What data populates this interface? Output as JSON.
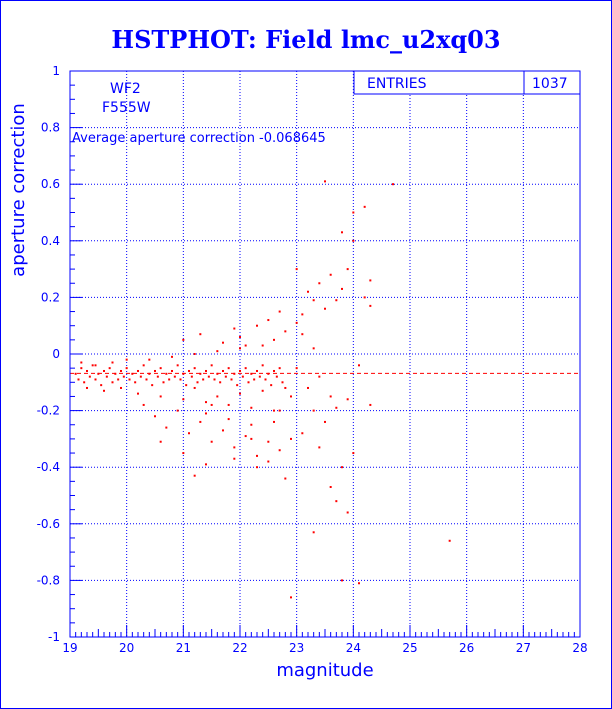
{
  "colors": {
    "axis": "#0000ff",
    "points": "#ff0000",
    "background": "#ffffff"
  },
  "chart_data": {
    "type": "scatter",
    "title": "HSTPHOT: Field lmc_u2xq03",
    "xlabel": "magnitude",
    "ylabel": "aperture correction",
    "xlim": [
      19,
      28
    ],
    "ylim": [
      -1,
      1
    ],
    "x_ticks": [
      "19",
      "20",
      "21",
      "22",
      "23",
      "24",
      "25",
      "26",
      "27",
      "28"
    ],
    "y_ticks": [
      "-1",
      "-0.8",
      "-0.6",
      "-0.4",
      "-0.2",
      "0",
      "0.2",
      "0.4",
      "0.6",
      "0.8",
      "1"
    ],
    "grid": true,
    "stats": {
      "label": "ENTRIES",
      "value": "1037"
    },
    "chip": "WF2",
    "filter": "F555W",
    "annotation": "Average aperture correction -0.068645",
    "average_line": -0.068645,
    "series": [
      {
        "points": [
          [
            19.1,
            -0.07
          ],
          [
            19.15,
            -0.09
          ],
          [
            19.2,
            -0.05
          ],
          [
            19.25,
            -0.1
          ],
          [
            19.3,
            -0.06
          ],
          [
            19.35,
            -0.08
          ],
          [
            19.4,
            -0.04
          ],
          [
            19.45,
            -0.09
          ],
          [
            19.5,
            -0.07
          ],
          [
            19.55,
            -0.11
          ],
          [
            19.6,
            -0.06
          ],
          [
            19.65,
            -0.08
          ],
          [
            19.7,
            -0.05
          ],
          [
            19.75,
            -0.1
          ],
          [
            19.8,
            -0.07
          ],
          [
            19.85,
            -0.09
          ],
          [
            19.9,
            -0.06
          ],
          [
            19.95,
            -0.08
          ],
          [
            20.0,
            -0.05
          ],
          [
            20.05,
            -0.09
          ],
          [
            20.1,
            -0.07
          ],
          [
            20.15,
            -0.1
          ],
          [
            20.2,
            -0.06
          ],
          [
            20.25,
            -0.08
          ],
          [
            20.3,
            -0.04
          ],
          [
            20.35,
            -0.09
          ],
          [
            20.4,
            -0.07
          ],
          [
            20.45,
            -0.11
          ],
          [
            20.5,
            -0.06
          ],
          [
            20.55,
            -0.08
          ],
          [
            20.6,
            -0.05
          ],
          [
            20.65,
            -0.1
          ],
          [
            20.7,
            -0.07
          ],
          [
            20.75,
            -0.09
          ],
          [
            20.8,
            -0.06
          ],
          [
            20.85,
            -0.08
          ],
          [
            20.9,
            -0.04
          ],
          [
            20.95,
            -0.09
          ],
          [
            21.0,
            -0.07
          ],
          [
            21.05,
            -0.11
          ],
          [
            21.1,
            -0.06
          ],
          [
            21.15,
            -0.08
          ],
          [
            21.2,
            -0.05
          ],
          [
            21.25,
            -0.1
          ],
          [
            21.3,
            -0.07
          ],
          [
            21.35,
            -0.09
          ],
          [
            21.4,
            -0.06
          ],
          [
            21.45,
            -0.08
          ],
          [
            21.5,
            -0.04
          ],
          [
            21.55,
            -0.09
          ],
          [
            21.6,
            -0.07
          ],
          [
            21.65,
            -0.1
          ],
          [
            21.7,
            -0.06
          ],
          [
            21.75,
            -0.08
          ],
          [
            21.8,
            -0.05
          ],
          [
            21.85,
            -0.09
          ],
          [
            21.9,
            -0.07
          ],
          [
            21.95,
            -0.11
          ],
          [
            22.0,
            -0.06
          ],
          [
            22.05,
            -0.08
          ],
          [
            22.1,
            -0.05
          ],
          [
            22.15,
            -0.1
          ],
          [
            22.2,
            -0.07
          ],
          [
            22.25,
            -0.09
          ],
          [
            22.3,
            -0.06
          ],
          [
            22.35,
            -0.08
          ],
          [
            22.4,
            -0.04
          ],
          [
            22.45,
            -0.09
          ],
          [
            22.5,
            -0.07
          ],
          [
            22.55,
            -0.11
          ],
          [
            22.6,
            -0.06
          ],
          [
            22.65,
            -0.08
          ],
          [
            22.7,
            -0.05
          ],
          [
            22.75,
            -0.1
          ],
          [
            19.2,
            -0.03
          ],
          [
            19.3,
            -0.12
          ],
          [
            19.45,
            -0.04
          ],
          [
            19.6,
            -0.13
          ],
          [
            19.75,
            -0.03
          ],
          [
            19.9,
            -0.12
          ],
          [
            20.0,
            -0.02
          ],
          [
            20.2,
            -0.14
          ],
          [
            20.4,
            -0.02
          ],
          [
            20.6,
            -0.15
          ],
          [
            20.8,
            -0.01
          ],
          [
            21.0,
            -0.16
          ],
          [
            21.2,
            0.0
          ],
          [
            21.4,
            -0.17
          ],
          [
            21.6,
            0.01
          ],
          [
            21.8,
            -0.18
          ],
          [
            22.0,
            0.02
          ],
          [
            22.2,
            -0.19
          ],
          [
            22.4,
            0.03
          ],
          [
            22.6,
            -0.2
          ],
          [
            20.3,
            -0.18
          ],
          [
            20.5,
            -0.22
          ],
          [
            20.7,
            -0.26
          ],
          [
            20.9,
            -0.2
          ],
          [
            21.1,
            -0.28
          ],
          [
            21.3,
            -0.24
          ],
          [
            21.5,
            -0.31
          ],
          [
            21.7,
            -0.27
          ],
          [
            21.9,
            -0.33
          ],
          [
            22.1,
            -0.29
          ],
          [
            22.3,
            -0.36
          ],
          [
            22.5,
            -0.31
          ],
          [
            22.7,
            -0.34
          ],
          [
            22.9,
            -0.3
          ],
          [
            21.2,
            -0.12
          ],
          [
            21.6,
            -0.15
          ],
          [
            22.0,
            -0.14
          ],
          [
            22.4,
            -0.13
          ],
          [
            22.8,
            -0.12
          ],
          [
            21.4,
            -0.21
          ],
          [
            21.8,
            -0.23
          ],
          [
            22.2,
            -0.25
          ],
          [
            22.6,
            -0.24
          ],
          [
            20.6,
            -0.31
          ],
          [
            21.0,
            -0.35
          ],
          [
            21.4,
            -0.39
          ],
          [
            21.9,
            -0.37
          ],
          [
            22.3,
            -0.4
          ],
          [
            21.2,
            -0.43
          ],
          [
            22.8,
            -0.44
          ],
          [
            21.0,
            0.05
          ],
          [
            21.3,
            0.07
          ],
          [
            21.7,
            0.04
          ],
          [
            22.0,
            0.06
          ],
          [
            22.3,
            0.1
          ],
          [
            22.5,
            0.12
          ],
          [
            22.8,
            0.08
          ],
          [
            23.0,
            0.11
          ],
          [
            22.1,
            0.03
          ],
          [
            22.6,
            0.05
          ],
          [
            21.9,
            0.09
          ],
          [
            22.7,
            0.15
          ],
          [
            23.1,
            0.14
          ],
          [
            23.3,
            0.19
          ],
          [
            23.5,
            0.16
          ],
          [
            23.2,
            0.22
          ],
          [
            23.4,
            0.25
          ],
          [
            23.6,
            0.28
          ],
          [
            23.7,
            0.19
          ],
          [
            23.8,
            0.23
          ],
          [
            23.0,
            -0.05
          ],
          [
            23.2,
            -0.12
          ],
          [
            23.4,
            -0.08
          ],
          [
            23.6,
            -0.15
          ],
          [
            23.3,
            -0.2
          ],
          [
            23.5,
            -0.24
          ],
          [
            23.7,
            -0.19
          ],
          [
            23.1,
            -0.28
          ],
          [
            23.9,
            -0.16
          ],
          [
            24.1,
            -0.04
          ],
          [
            23.4,
            -0.33
          ],
          [
            23.8,
            -0.4
          ],
          [
            23.6,
            -0.47
          ],
          [
            24.0,
            -0.35
          ],
          [
            23.9,
            -0.56
          ],
          [
            23.7,
            -0.52
          ],
          [
            23.3,
            -0.63
          ],
          [
            23.8,
            -0.8
          ],
          [
            24.1,
            -0.81
          ],
          [
            22.9,
            -0.86
          ],
          [
            23.5,
            0.61
          ],
          [
            24.7,
            0.6
          ],
          [
            24.2,
            0.52
          ],
          [
            24.0,
            0.5
          ],
          [
            23.8,
            0.43
          ],
          [
            24.0,
            0.4
          ],
          [
            23.9,
            0.3
          ],
          [
            24.3,
            0.26
          ],
          [
            24.2,
            0.2
          ],
          [
            24.3,
            0.17
          ],
          [
            24.3,
            -0.18
          ],
          [
            25.7,
            -0.66
          ],
          [
            23.0,
            0.3
          ],
          [
            23.1,
            0.07
          ],
          [
            23.3,
            0.02
          ],
          [
            22.9,
            -0.15
          ],
          [
            22.7,
            -0.2
          ],
          [
            22.5,
            -0.38
          ],
          [
            22.2,
            -0.3
          ],
          [
            21.5,
            -0.18
          ]
        ]
      }
    ]
  }
}
